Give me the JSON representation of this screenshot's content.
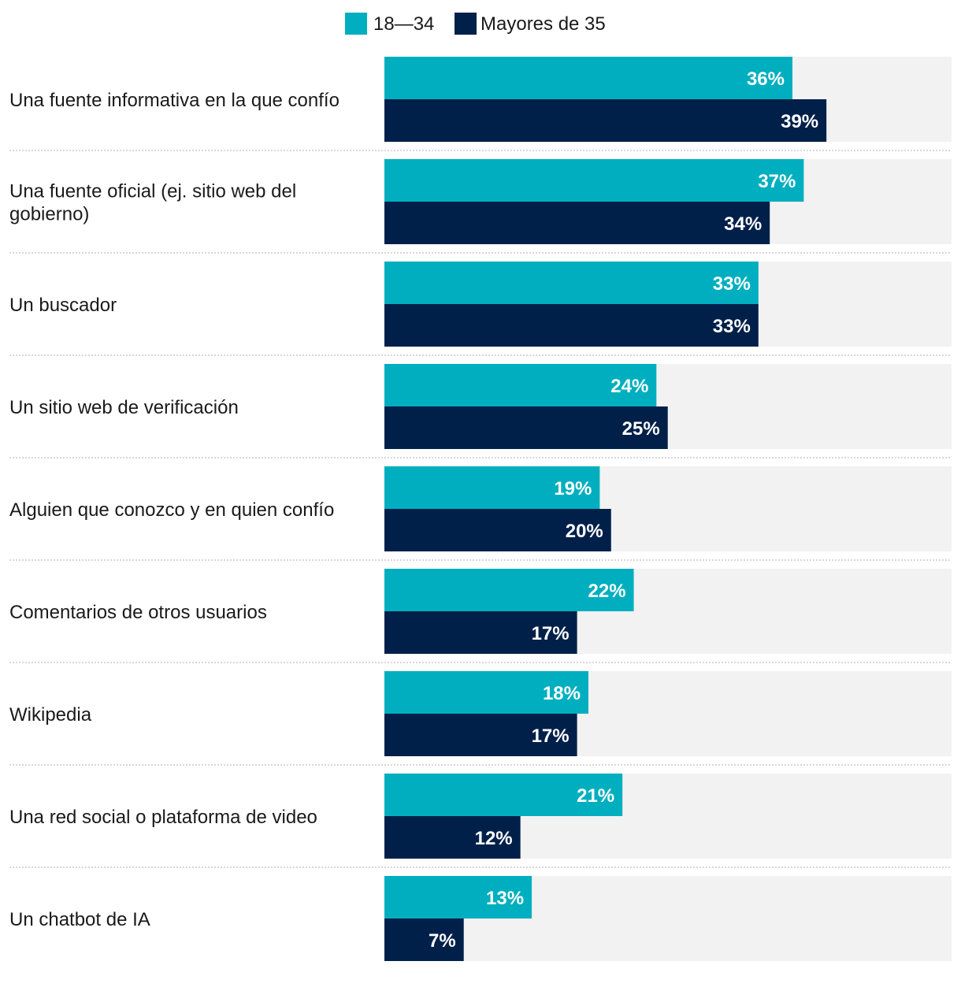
{
  "chart_data": {
    "type": "bar",
    "orientation": "horizontal",
    "categories": [
      [
        "Una fuente informativa en la que confío"
      ],
      [
        "Una fuente oficial (ej. sitio web del",
        "gobierno)"
      ],
      [
        "Un buscador"
      ],
      [
        "Un sitio web de verificación"
      ],
      [
        "Alguien que conozco y en quien confío"
      ],
      [
        "Comentarios de otros usuarios"
      ],
      [
        "Wikipedia"
      ],
      [
        "Una red social o plataforma de video"
      ],
      [
        "Un chatbot de IA"
      ]
    ],
    "series": [
      {
        "name": "18—34",
        "color": "#00afbf",
        "values": [
          36,
          37,
          33,
          24,
          19,
          22,
          18,
          21,
          13
        ]
      },
      {
        "name": "Mayores de 35",
        "color": "#00204a",
        "values": [
          39,
          34,
          33,
          25,
          20,
          17,
          17,
          12,
          7
        ]
      }
    ],
    "value_suffix": "%",
    "xlim": [
      0,
      50
    ],
    "legend_position": "top-center",
    "background_track_color": "#f2f2f2",
    "separator_color": "#cccccc"
  }
}
